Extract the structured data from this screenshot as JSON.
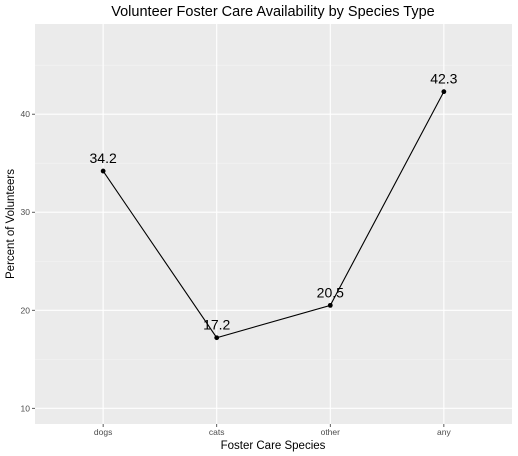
{
  "chart_data": {
    "type": "line",
    "title": "Volunteer Foster Care Availability by Species Type",
    "xlabel": "Foster Care Species",
    "ylabel": "Percent of Volunteers",
    "categories": [
      "dogs",
      "cats",
      "other",
      "any"
    ],
    "values": [
      34.2,
      17.2,
      20.5,
      42.3
    ],
    "data_labels": [
      "34.2",
      "17.2",
      "20.5",
      "42.3"
    ],
    "y_ticks": [
      10,
      20,
      30,
      40
    ],
    "ylim": [
      8.4,
      49.2
    ],
    "grid": true,
    "legend": "none",
    "colors": {
      "panel": "#ebebeb",
      "grid_major": "#ffffff",
      "grid_minor": "#f4f4f4",
      "line": "#000000",
      "tick": "#333333"
    }
  }
}
